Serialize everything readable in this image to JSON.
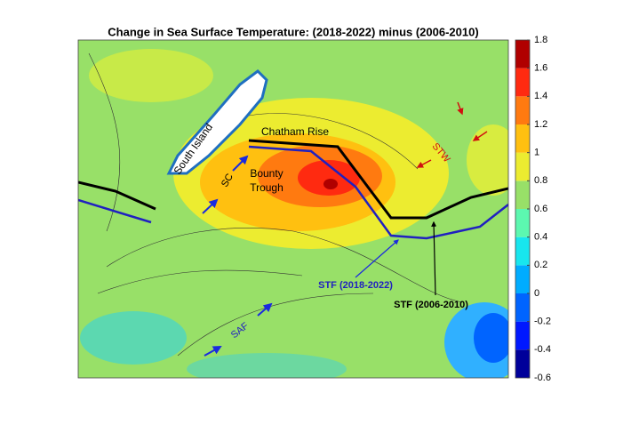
{
  "title": "Change in Sea Surface Temperature: (2018-2022) minus (2006-2010)",
  "colorbar": {
    "lim": [
      -0.6,
      1.8
    ],
    "ticks": [
      -0.6,
      -0.4,
      -0.2,
      0,
      0.2,
      0.4,
      0.6,
      0.8,
      1,
      1.2,
      1.4,
      1.6,
      1.8
    ],
    "colors": [
      "#00009a",
      "#0018ff",
      "#0064ff",
      "#00acff",
      "#18e6ee",
      "#5cf8b0",
      "#98e068",
      "#ecec30",
      "#ffc010",
      "#ff7a10",
      "#ff2a10",
      "#b00000"
    ]
  },
  "annotations": {
    "south_island": "South Island",
    "chatham_rise": "Chatham Rise",
    "sc": "SC",
    "bounty": "Bounty",
    "trough": "Trough",
    "stw": "STW",
    "stf_new": "STF (2018-2022)",
    "stf_old": "STF (2006-2010)",
    "saf": "SAF"
  }
}
